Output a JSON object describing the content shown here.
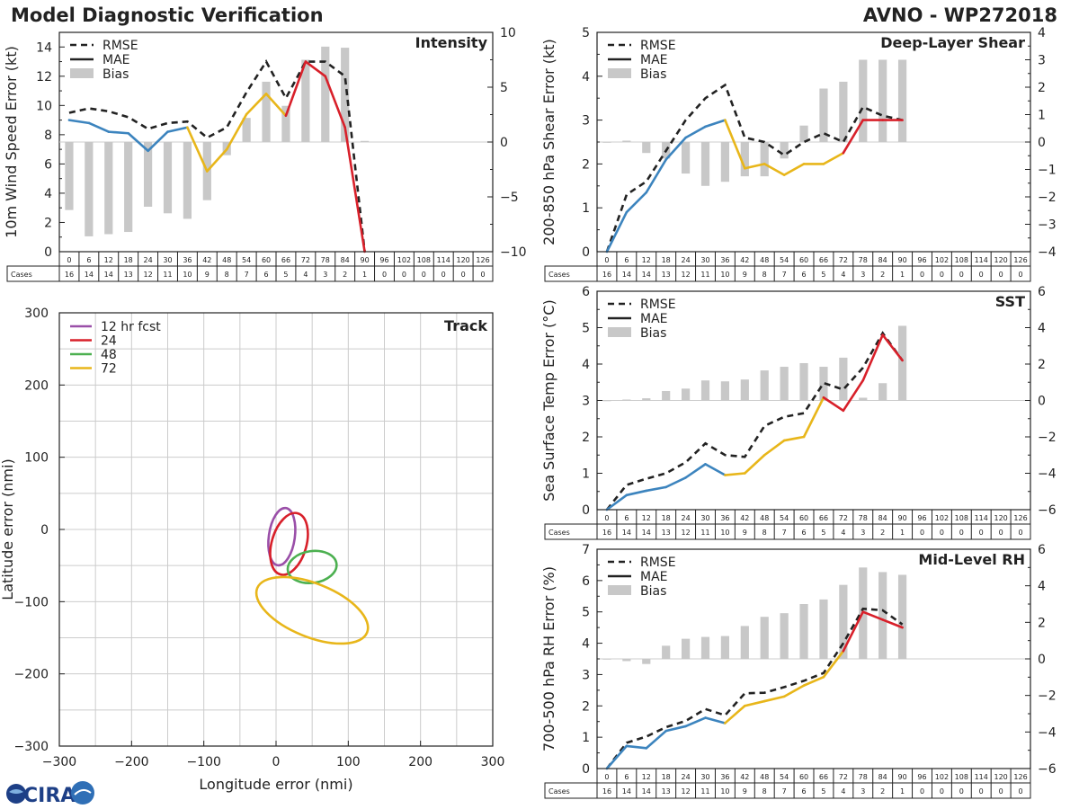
{
  "header": {
    "title": "Model Diagnostic Verification",
    "subtitle": "AVNO - WP272018"
  },
  "logo": {
    "text": "CIRA"
  },
  "colors": {
    "rmse": "#222222",
    "bias": "#c8c8c8",
    "blue": "#3c84be",
    "yellow": "#e8b61a",
    "red": "#d8202a",
    "purple": "#9a4fa8",
    "green": "#4cb050",
    "grid": "#cccccc"
  },
  "legend_labels": {
    "rmse": "RMSE",
    "mae": "MAE",
    "bias": "Bias"
  },
  "cases_label": "Cases",
  "lead_hours": [
    0,
    6,
    12,
    18,
    24,
    30,
    36,
    42,
    48,
    54,
    60,
    66,
    72,
    78,
    84,
    90,
    96,
    102,
    108,
    114,
    120,
    126
  ],
  "cases": [
    16,
    14,
    14,
    13,
    12,
    11,
    10,
    9,
    8,
    7,
    6,
    5,
    4,
    3,
    2,
    1,
    0,
    0,
    0,
    0,
    0,
    0
  ],
  "chart_data": [
    {
      "type": "line",
      "id": "intensity",
      "title": "Intensity",
      "ylabel": "10m Wind Speed Error (kt)",
      "ylim": [
        0,
        15
      ],
      "yticks": [
        0,
        2,
        4,
        6,
        8,
        10,
        12,
        14
      ],
      "y2lim": [
        -10,
        10
      ],
      "y2ticks": [
        -10,
        -5,
        0,
        5,
        10
      ],
      "y2ticklabels": [
        "−10",
        "−5",
        "0",
        "5",
        "10"
      ],
      "rmse": [
        9.5,
        9.8,
        9.6,
        9.2,
        8.4,
        8.8,
        8.9,
        7.8,
        8.5,
        10.9,
        13.0,
        10.5,
        13.0,
        13.0,
        12.0,
        0
      ],
      "mae": [
        9.0,
        8.8,
        8.2,
        8.1,
        6.9,
        8.2,
        8.5,
        5.5,
        7.0,
        9.4,
        10.8,
        9.3,
        13.0,
        12.0,
        8.5,
        0
      ],
      "bias": [
        -6.2,
        -8.6,
        -8.4,
        -8.2,
        -5.9,
        -6.5,
        -7.0,
        -5.3,
        -1.2,
        2.2,
        5.5,
        3.3,
        7.5,
        8.7,
        8.6,
        0.1
      ],
      "mae_colors": [
        "blue",
        "blue",
        "blue",
        "blue",
        "blue",
        "blue",
        "blue",
        "yellow",
        "yellow",
        "yellow",
        "yellow",
        "yellow",
        "red",
        "red",
        "red",
        "red"
      ]
    },
    {
      "type": "line",
      "id": "shear",
      "title": "Deep-Layer Shear",
      "ylabel": "200-850 hPa Shear Error (kt)",
      "ylim": [
        0,
        5
      ],
      "yticks": [
        0,
        1,
        2,
        3,
        4,
        5
      ],
      "y2lim": [
        -4,
        4
      ],
      "y2ticks": [
        -4,
        -3,
        -2,
        -1,
        0,
        1,
        2,
        3,
        4
      ],
      "y2ticklabels": [
        "−4",
        "−3",
        "−2",
        "−1",
        "0",
        "1",
        "2",
        "3",
        "4"
      ],
      "rmse": [
        0,
        1.3,
        1.6,
        2.3,
        3.0,
        3.5,
        3.8,
        2.6,
        2.5,
        2.2,
        2.5,
        2.7,
        2.5,
        3.3,
        3.1,
        3.0
      ],
      "mae": [
        0,
        0.9,
        1.35,
        2.1,
        2.6,
        2.85,
        3.0,
        1.9,
        2.0,
        1.75,
        2.0,
        2.0,
        2.25,
        3.0,
        3.0,
        3.0
      ],
      "bias": [
        0,
        0.05,
        -0.4,
        -0.6,
        -1.15,
        -1.6,
        -1.45,
        -1.25,
        -1.25,
        -0.6,
        0.6,
        1.95,
        2.2,
        3.0,
        3.0,
        3.0
      ],
      "mae_colors": [
        "blue",
        "blue",
        "blue",
        "blue",
        "blue",
        "blue",
        "blue",
        "yellow",
        "yellow",
        "yellow",
        "yellow",
        "yellow",
        "yellow",
        "red",
        "red",
        "red"
      ]
    },
    {
      "type": "line",
      "id": "sst",
      "title": "SST",
      "ylabel": "Sea Surface Temp Error (°C)",
      "ylim": [
        0,
        6
      ],
      "yticks": [
        0,
        1,
        2,
        3,
        4,
        5,
        6
      ],
      "y2lim": [
        -6,
        6
      ],
      "y2ticks": [
        -6,
        -4,
        -2,
        0,
        2,
        4,
        6
      ],
      "y2ticklabels": [
        "−6",
        "−4",
        "−2",
        "0",
        "2",
        "4",
        "6"
      ],
      "rmse": [
        0,
        0.68,
        0.85,
        1.0,
        1.3,
        1.82,
        1.5,
        1.45,
        2.3,
        2.55,
        2.65,
        3.48,
        3.3,
        3.9,
        4.85,
        4.1
      ],
      "mae": [
        0,
        0.4,
        0.52,
        0.62,
        0.88,
        1.25,
        0.95,
        1.0,
        1.5,
        1.9,
        2.0,
        3.08,
        2.72,
        3.55,
        4.8,
        4.1
      ],
      "bias": [
        0,
        0.05,
        0.12,
        0.52,
        0.65,
        1.1,
        1.05,
        1.15,
        1.65,
        1.85,
        2.05,
        1.85,
        2.35,
        0.15,
        0.95,
        4.1
      ],
      "mae_colors": [
        "blue",
        "blue",
        "blue",
        "blue",
        "blue",
        "blue",
        "blue",
        "yellow",
        "yellow",
        "yellow",
        "yellow",
        "yellow",
        "red",
        "red",
        "red",
        "red"
      ]
    },
    {
      "type": "line",
      "id": "rh",
      "title": "Mid-Level RH",
      "ylabel": "700-500 hPa RH Error (%)",
      "ylim": [
        0,
        7
      ],
      "yticks": [
        0,
        1,
        2,
        3,
        4,
        5,
        6,
        7
      ],
      "y2lim": [
        -6,
        6
      ],
      "y2ticks": [
        -6,
        -4,
        -2,
        0,
        2,
        4,
        6
      ],
      "y2ticklabels": [
        "−6",
        "−4",
        "−2",
        "0",
        "2",
        "4",
        "6"
      ],
      "rmse": [
        0,
        0.82,
        1.02,
        1.32,
        1.52,
        1.9,
        1.7,
        2.4,
        2.42,
        2.6,
        2.8,
        3.05,
        4.0,
        5.1,
        5.05,
        4.6
      ],
      "mae": [
        0,
        0.72,
        0.65,
        1.2,
        1.35,
        1.62,
        1.45,
        2.0,
        2.15,
        2.3,
        2.65,
        2.92,
        3.75,
        5.0,
        4.75,
        4.5
      ],
      "bias": [
        0,
        -0.12,
        -0.28,
        0.72,
        1.1,
        1.2,
        1.25,
        1.8,
        2.3,
        2.5,
        3.0,
        3.25,
        4.05,
        5.0,
        4.75,
        4.6
      ],
      "mae_colors": [
        "blue",
        "blue",
        "blue",
        "blue",
        "blue",
        "blue",
        "blue",
        "yellow",
        "yellow",
        "yellow",
        "yellow",
        "yellow",
        "yellow",
        "red",
        "red",
        "red"
      ]
    },
    {
      "type": "scatter",
      "id": "track",
      "title": "Track",
      "xlabel": "Longitude error (nmi)",
      "ylabel": "Latitude error (nmi)",
      "xlim": [
        -300,
        300
      ],
      "ylim": [
        -300,
        300
      ],
      "xticks": [
        -300,
        -200,
        -100,
        0,
        100,
        200,
        300
      ],
      "xticklabels": [
        "−300",
        "−200",
        "−100",
        "0",
        "100",
        "200",
        "300"
      ],
      "yticks": [
        -300,
        -200,
        -100,
        0,
        100,
        200,
        300
      ],
      "yticklabels": [
        "−300",
        "−200",
        "−100",
        "0",
        "100",
        "200",
        "300"
      ],
      "grid_step": 50,
      "ellipses": [
        {
          "label": "12 hr fcst",
          "color": "purple",
          "cx": 8,
          "cy": -10,
          "rx": 18,
          "ry": 40,
          "angle": 8
        },
        {
          "label": "24",
          "color": "red",
          "cx": 18,
          "cy": -20,
          "rx": 24,
          "ry": 44,
          "angle": 16
        },
        {
          "label": "48",
          "color": "green",
          "cx": 50,
          "cy": -52,
          "rx": 34,
          "ry": 22,
          "angle": -8
        },
        {
          "label": "72",
          "color": "yellow",
          "cx": 50,
          "cy": -112,
          "rx": 82,
          "ry": 37,
          "angle": 22
        }
      ]
    }
  ]
}
